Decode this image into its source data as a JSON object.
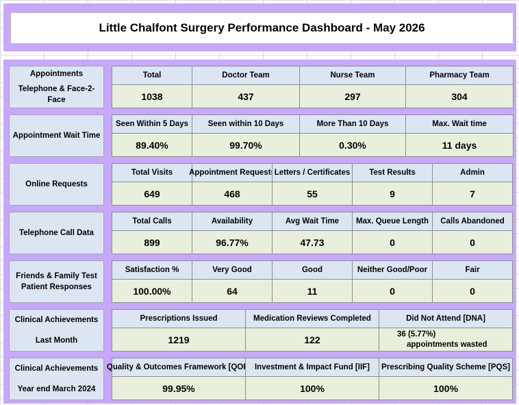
{
  "title": "Little Chalfont Surgery Performance Dashboard - May 2026",
  "sections": [
    {
      "label_lines": [
        "Appointments",
        "Telephone & Face-2-Face"
      ],
      "headers": [
        "Total",
        "Doctor Team",
        "Nurse Team",
        "Pharmacy Team"
      ],
      "values": [
        "1038",
        "437",
        "297",
        "304"
      ]
    },
    {
      "label_lines": [
        "Appointment Wait Time"
      ],
      "headers": [
        "Seen Within 5 Days",
        "Seen within 10 Days",
        "More Than 10 Days",
        "Max. Wait time"
      ],
      "values": [
        "89.40%",
        "99.70%",
        "0.30%",
        "11 days"
      ]
    },
    {
      "label_lines": [
        "Online Requests"
      ],
      "headers": [
        "Total Visits",
        "Appointment Requests",
        "Letters / Certificates",
        "Test Results",
        "Admin"
      ],
      "values": [
        "649",
        "468",
        "55",
        "9",
        "7"
      ]
    },
    {
      "label_lines": [
        "Telephone Call Data"
      ],
      "headers": [
        "Total Calls",
        "Availability",
        "Avg Wait Time",
        "Max. Queue Length",
        "Calls Abandoned"
      ],
      "values": [
        "899",
        "96.77%",
        "47.73",
        "0",
        "0"
      ]
    },
    {
      "label_lines": [
        "Friends & Family Test",
        "Patient Responses"
      ],
      "headers": [
        "Satisfaction %",
        "Very Good",
        "Good",
        "Neither Good/Poor",
        "Fair"
      ],
      "values": [
        "100.00%",
        "64",
        "11",
        "0",
        "0"
      ]
    },
    {
      "label_lines": [
        "Clinical Achievements",
        "Last Month"
      ],
      "headers": [
        "Prescriptions Issued",
        "Medication Reviews Completed",
        "Did Not Attend [DNA]"
      ],
      "values": [
        "1219",
        "122"
      ],
      "dna_note": [
        "36 (5.77%)",
        "appointments wasted"
      ]
    },
    {
      "label_lines": [
        "Clinical Achievements",
        "Year end March 2024"
      ],
      "headers": [
        "Quality & Outcomes Framework [QOF]",
        "Investment & Impact Fund [IIF]",
        "Prescribing Quality Scheme [PQS]"
      ],
      "values": [
        "99.95%",
        "100%",
        "100%"
      ]
    }
  ]
}
